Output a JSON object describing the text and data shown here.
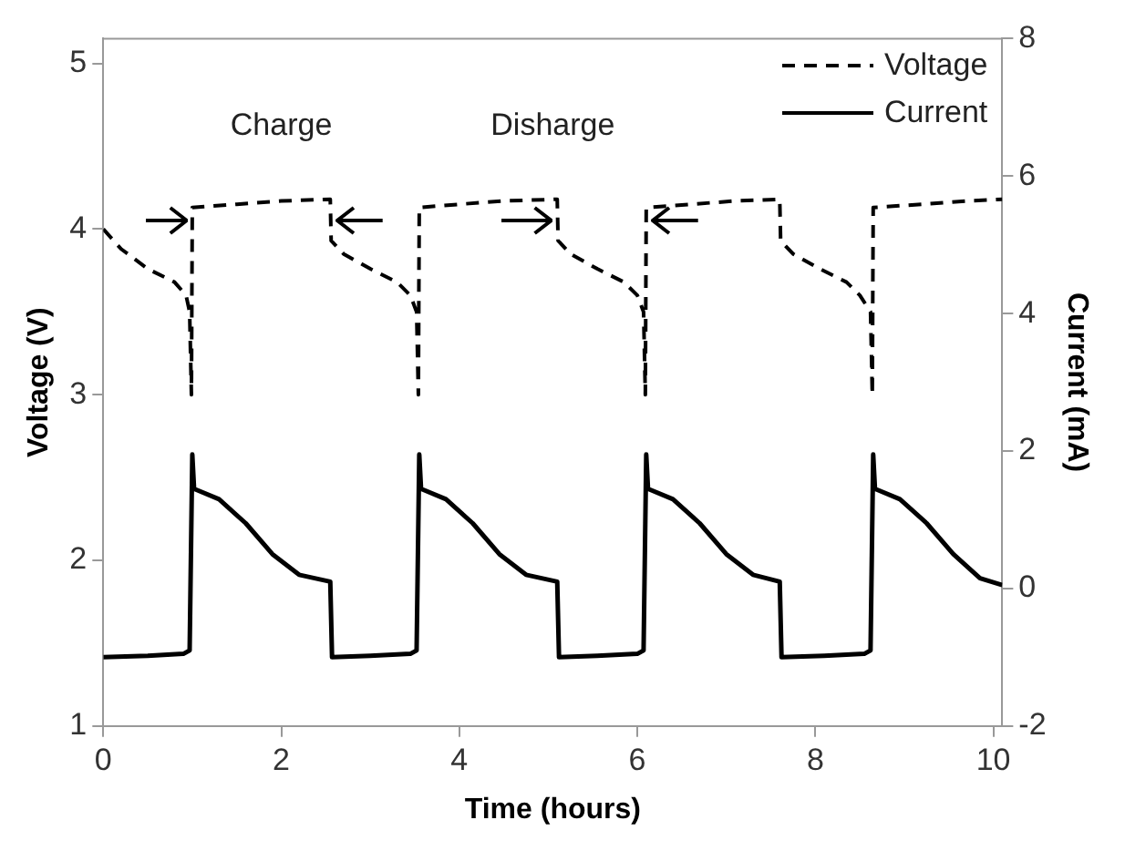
{
  "chart_data": {
    "type": "line",
    "xlabel": "Time (hours)",
    "ylabel": "Voltage (V)",
    "y2label": "Current (mA)",
    "xlim": [
      0,
      10.1
    ],
    "xticks": [
      0,
      2,
      4,
      6,
      8,
      10
    ],
    "ylim": [
      1,
      5.15
    ],
    "yticks": [
      1,
      2,
      3,
      4,
      5
    ],
    "y2lim": [
      -2,
      8
    ],
    "y2ticks": [
      -2,
      0,
      2,
      4,
      6,
      8
    ],
    "grid": false,
    "legend": "top right",
    "marker": "none",
    "annotations": [
      "Charge",
      "Disharge"
    ],
    "series": [
      {
        "name": "Voltage",
        "color": "#000000",
        "line_style": "dashed",
        "axis": "y",
        "x": [
          0,
          0.2,
          0.5,
          0.8,
          0.93,
          0.97,
          0.99,
          1.0,
          1.5,
          2.0,
          2.55,
          2.56,
          2.7,
          3.0,
          3.3,
          3.45,
          3.52,
          3.54,
          3.55,
          4.0,
          4.5,
          5.1,
          5.11,
          5.25,
          5.55,
          5.85,
          6.0,
          6.07,
          6.09,
          6.1,
          6.6,
          7.1,
          7.6,
          7.61,
          7.75,
          8.05,
          8.35,
          8.5,
          8.62,
          8.64,
          8.65,
          9.2,
          9.7,
          10.1
        ],
        "values": [
          4.0,
          3.88,
          3.76,
          3.68,
          3.6,
          3.5,
          3.0,
          4.13,
          4.15,
          4.17,
          4.18,
          3.93,
          3.85,
          3.76,
          3.68,
          3.6,
          3.5,
          3.0,
          4.13,
          4.15,
          4.17,
          4.18,
          3.93,
          3.85,
          3.76,
          3.68,
          3.6,
          3.5,
          3.0,
          4.13,
          4.15,
          4.17,
          4.18,
          3.93,
          3.85,
          3.76,
          3.68,
          3.6,
          3.5,
          3.0,
          4.13,
          4.15,
          4.17,
          4.18
        ]
      },
      {
        "name": "Current",
        "color": "#000000",
        "line_style": "solid",
        "axis": "y2",
        "x": [
          0,
          0.5,
          0.9,
          0.97,
          1.0,
          1.02,
          1.3,
          1.6,
          1.9,
          2.2,
          2.55,
          2.57,
          3.0,
          3.45,
          3.52,
          3.55,
          3.57,
          3.85,
          4.15,
          4.45,
          4.75,
          5.1,
          5.12,
          5.55,
          6.0,
          6.07,
          6.1,
          6.12,
          6.4,
          6.7,
          7.0,
          7.3,
          7.6,
          7.62,
          8.1,
          8.55,
          8.62,
          8.65,
          8.67,
          8.95,
          9.25,
          9.55,
          9.85,
          10.1
        ],
        "values": [
          -1.0,
          -0.98,
          -0.95,
          -0.9,
          1.95,
          1.45,
          1.3,
          0.95,
          0.5,
          0.2,
          0.1,
          -1.0,
          -0.98,
          -0.95,
          -0.9,
          1.95,
          1.45,
          1.3,
          0.95,
          0.5,
          0.2,
          0.1,
          -1.0,
          -0.98,
          -0.95,
          -0.9,
          1.95,
          1.45,
          1.3,
          0.95,
          0.5,
          0.2,
          0.1,
          -1.0,
          -0.98,
          -0.95,
          -0.9,
          1.95,
          1.45,
          1.3,
          0.95,
          0.5,
          0.15,
          0.05
        ]
      }
    ]
  }
}
